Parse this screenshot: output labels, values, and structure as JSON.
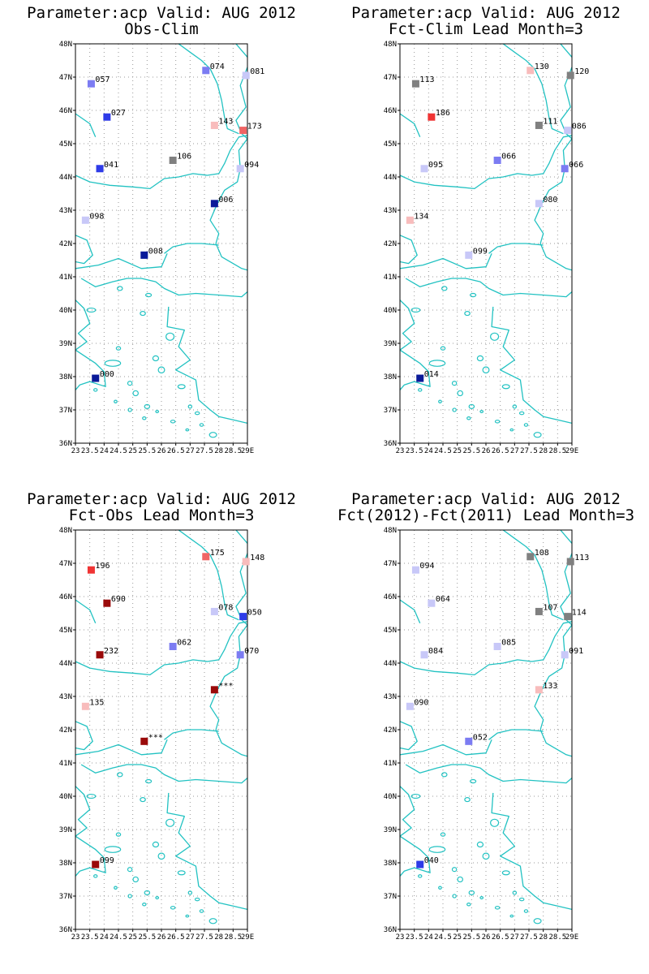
{
  "colors": {
    "coast": "#22c2c2",
    "grid": "#9a9a9a",
    "frame": "#000000",
    "marker_scale": {
      "dark_blue": "#0a1a99",
      "blue": "#2e3be8",
      "medium_blue": "#7c7cf2",
      "light_blue": "#c8c8f8",
      "gray": "#808080",
      "light_red": "#f8bcbc",
      "red": "#f06464",
      "bright_red": "#f03434",
      "dark_red": "#9a0a0a"
    }
  },
  "map_extent": {
    "lon": [
      23,
      29
    ],
    "lat": [
      36,
      48
    ]
  },
  "axis": {
    "lat_ticks": [
      "36N",
      "37N",
      "38N",
      "39N",
      "40N",
      "41N",
      "42N",
      "43N",
      "44N",
      "45N",
      "46N",
      "47N",
      "48N"
    ],
    "lon_ticks": [
      "23",
      "23.5",
      "24",
      "24.5",
      "25",
      "25.5",
      "26",
      "26.5",
      "27",
      "27.5",
      "28",
      "28.5",
      "29E"
    ]
  },
  "panels": [
    {
      "id": "obs-clim",
      "title_line1": "Parameter:acp Valid: AUG 2012",
      "title_line2": "Obs-Clim",
      "stations": [
        {
          "lon": 23.55,
          "lat": 46.8,
          "label": "057",
          "color": "medium_blue"
        },
        {
          "lon": 24.1,
          "lat": 45.8,
          "label": "027",
          "color": "blue"
        },
        {
          "lon": 23.85,
          "lat": 44.25,
          "label": "041",
          "color": "blue"
        },
        {
          "lon": 23.35,
          "lat": 42.7,
          "label": "098",
          "color": "light_blue"
        },
        {
          "lon": 25.4,
          "lat": 41.65,
          "label": "008",
          "color": "dark_blue"
        },
        {
          "lon": 26.4,
          "lat": 44.5,
          "label": "106",
          "color": "gray"
        },
        {
          "lon": 27.55,
          "lat": 47.2,
          "label": "074",
          "color": "medium_blue"
        },
        {
          "lon": 28.95,
          "lat": 47.05,
          "label": "081",
          "color": "light_blue"
        },
        {
          "lon": 27.85,
          "lat": 45.55,
          "label": "143",
          "color": "light_red"
        },
        {
          "lon": 28.85,
          "lat": 45.4,
          "label": "173",
          "color": "red"
        },
        {
          "lon": 28.75,
          "lat": 44.25,
          "label": "094",
          "color": "light_blue"
        },
        {
          "lon": 27.85,
          "lat": 43.2,
          "label": "006",
          "color": "dark_blue"
        },
        {
          "lon": 23.7,
          "lat": 37.95,
          "label": "000",
          "color": "dark_blue"
        }
      ]
    },
    {
      "id": "fct-clim",
      "title_line1": "Parameter:acp Valid: AUG 2012",
      "title_line2": "Fct-Clim Lead Month=3",
      "stations": [
        {
          "lon": 23.55,
          "lat": 46.8,
          "label": "113",
          "color": "gray"
        },
        {
          "lon": 24.1,
          "lat": 45.8,
          "label": "186",
          "color": "bright_red"
        },
        {
          "lon": 23.85,
          "lat": 44.25,
          "label": "095",
          "color": "light_blue"
        },
        {
          "lon": 23.35,
          "lat": 42.7,
          "label": "134",
          "color": "light_red"
        },
        {
          "lon": 25.4,
          "lat": 41.65,
          "label": "099",
          "color": "light_blue"
        },
        {
          "lon": 26.4,
          "lat": 44.5,
          "label": "066",
          "color": "medium_blue"
        },
        {
          "lon": 27.55,
          "lat": 47.2,
          "label": "130",
          "color": "light_red"
        },
        {
          "lon": 28.95,
          "lat": 47.05,
          "label": "120",
          "color": "gray"
        },
        {
          "lon": 27.85,
          "lat": 45.55,
          "label": "111",
          "color": "gray"
        },
        {
          "lon": 28.85,
          "lat": 45.4,
          "label": "086",
          "color": "light_blue"
        },
        {
          "lon": 28.75,
          "lat": 44.25,
          "label": "066",
          "color": "medium_blue"
        },
        {
          "lon": 27.85,
          "lat": 43.2,
          "label": "080",
          "color": "light_blue"
        },
        {
          "lon": 23.7,
          "lat": 37.95,
          "label": "014",
          "color": "dark_blue"
        }
      ]
    },
    {
      "id": "fct-obs",
      "title_line1": "Parameter:acp Valid: AUG 2012",
      "title_line2": "Fct-Obs Lead Month=3",
      "stations": [
        {
          "lon": 23.55,
          "lat": 46.8,
          "label": "196",
          "color": "bright_red"
        },
        {
          "lon": 24.1,
          "lat": 45.8,
          "label": "690",
          "color": "dark_red"
        },
        {
          "lon": 23.85,
          "lat": 44.25,
          "label": "232",
          "color": "dark_red"
        },
        {
          "lon": 23.35,
          "lat": 42.7,
          "label": "135",
          "color": "light_red"
        },
        {
          "lon": 25.4,
          "lat": 41.65,
          "label": "***",
          "color": "dark_red"
        },
        {
          "lon": 26.4,
          "lat": 44.5,
          "label": "062",
          "color": "medium_blue"
        },
        {
          "lon": 27.55,
          "lat": 47.2,
          "label": "175",
          "color": "red"
        },
        {
          "lon": 28.95,
          "lat": 47.05,
          "label": "148",
          "color": "light_red"
        },
        {
          "lon": 27.85,
          "lat": 45.55,
          "label": "078",
          "color": "light_blue"
        },
        {
          "lon": 28.85,
          "lat": 45.4,
          "label": "050",
          "color": "blue"
        },
        {
          "lon": 28.75,
          "lat": 44.25,
          "label": "070",
          "color": "medium_blue"
        },
        {
          "lon": 27.85,
          "lat": 43.2,
          "label": "***",
          "color": "dark_red"
        },
        {
          "lon": 23.7,
          "lat": 37.95,
          "label": "099",
          "color": "dark_red"
        }
      ]
    },
    {
      "id": "fct2012-fct2011",
      "title_line1": "Parameter:acp Valid: AUG 2012",
      "title_line2": "Fct(2012)-Fct(2011) Lead Month=3",
      "stations": [
        {
          "lon": 23.55,
          "lat": 46.8,
          "label": "094",
          "color": "light_blue"
        },
        {
          "lon": 24.1,
          "lat": 45.8,
          "label": "064",
          "color": "light_blue"
        },
        {
          "lon": 23.85,
          "lat": 44.25,
          "label": "084",
          "color": "light_blue"
        },
        {
          "lon": 23.35,
          "lat": 42.7,
          "label": "090",
          "color": "light_blue"
        },
        {
          "lon": 25.4,
          "lat": 41.65,
          "label": "052",
          "color": "medium_blue"
        },
        {
          "lon": 26.4,
          "lat": 44.5,
          "label": "085",
          "color": "light_blue"
        },
        {
          "lon": 27.55,
          "lat": 47.2,
          "label": "108",
          "color": "gray"
        },
        {
          "lon": 28.95,
          "lat": 47.05,
          "label": "113",
          "color": "gray"
        },
        {
          "lon": 27.85,
          "lat": 45.55,
          "label": "107",
          "color": "gray"
        },
        {
          "lon": 28.85,
          "lat": 45.4,
          "label": "114",
          "color": "gray"
        },
        {
          "lon": 28.75,
          "lat": 44.25,
          "label": "091",
          "color": "light_blue"
        },
        {
          "lon": 27.85,
          "lat": 43.2,
          "label": "133",
          "color": "light_red"
        },
        {
          "lon": 23.7,
          "lat": 37.95,
          "label": "040",
          "color": "blue"
        }
      ]
    }
  ]
}
